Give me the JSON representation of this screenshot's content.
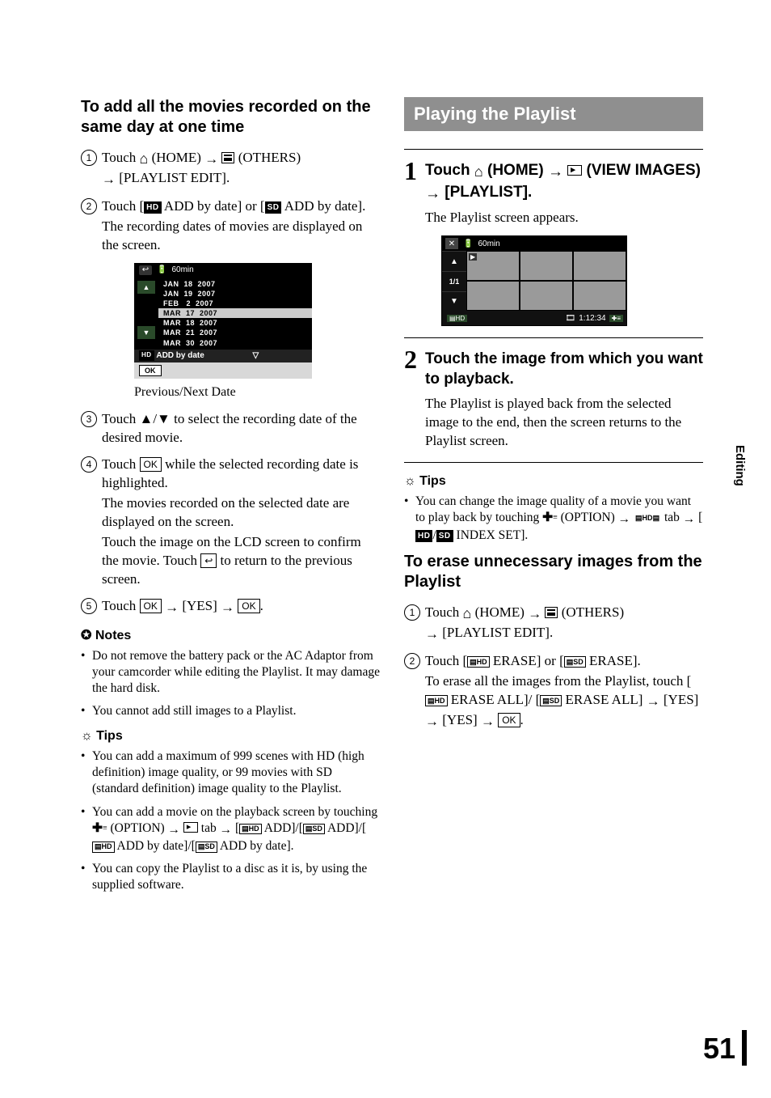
{
  "sideTab": "Editing",
  "pageNumber": "51",
  "left": {
    "heading": "To add all the movies recorded on the same day at one time",
    "step1_a": "Touch ",
    "step1_b": " (HOME) ",
    "step1_c": " (OTHERS) ",
    "step1_d": " [PLAYLIST EDIT].",
    "step2_a": "Touch [",
    "step2_b": " ADD by date] or [",
    "step2_c": " ADD by date].",
    "step2_body": "The recording dates of movies are displayed on the screen.",
    "shot1": {
      "battery": "60min",
      "dates": [
        "JAN  18  2007",
        "JAN  19  2007",
        "FEB   2  2007",
        "MAR  17  2007",
        "MAR  18  2007",
        "MAR  21  2007",
        "MAR  30  2007"
      ],
      "highlight_index": 3,
      "bar": "ADD by date",
      "ok": "OK"
    },
    "caption": "Previous/Next Date",
    "step3": "Touch ▲/▼ to select the recording date of the desired movie.",
    "step4_a": "Touch ",
    "step4_b": " while the selected recording date is highlighted.",
    "step4_body1": "The movies recorded on the selected date are displayed on the screen.",
    "step4_body2a": "Touch the image on the LCD screen to confirm the movie. Touch ",
    "step4_body2b": " to return to the previous screen.",
    "step5_a": "Touch ",
    "step5_b": " [YES] ",
    "ok": "OK",
    "notesHdr": "Notes",
    "notes": [
      "Do not remove the battery pack or the AC Adaptor from your camcorder while editing the Playlist. It may damage the hard disk.",
      "You cannot add still images to a Playlist."
    ],
    "tipsHdr": "Tips",
    "tips": [
      "You can add a maximum of 999 scenes with HD (high definition) image quality, or 99 movies with SD (standard definition) image quality to the Playlist.",
      "__TIP2__",
      "You can copy the Playlist to a disc as it is, by using the supplied software."
    ],
    "tip2_a": "You can add a movie on the playback screen by touching ",
    "tip2_b": " (OPTION) ",
    "tip2_c": " tab ",
    "tip2_d": " ADD]/[",
    "tip2_e": " ADD]/[",
    "tip2_f": " ADD by date]/[",
    "tip2_g": " ADD by date]."
  },
  "right": {
    "banner": "Playing the Playlist",
    "s1_lead_a": "Touch ",
    "s1_lead_b": " (HOME) ",
    "s1_lead_c": " (VIEW IMAGES) ",
    "s1_lead_d": " [PLAYLIST].",
    "s1_body": "The Playlist screen appears.",
    "shot2": {
      "battery": "60min",
      "page": "1/1",
      "time": "1:12:34"
    },
    "s2_lead": "Touch the image from which you want to playback.",
    "s2_body": "The Playlist is played back from the selected image to the end, then the screen returns to the Playlist screen.",
    "tipsHdr": "Tips",
    "tip_a": "You can change the image quality of a movie you want to play back by touching ",
    "tip_b": " (OPTION) ",
    "tip_c": " tab ",
    "tip_d": " [",
    "tip_e": "/",
    "tip_f": " INDEX SET].",
    "eraseHdr": "To erase unnecessary images from the Playlist",
    "e1_a": "Touch ",
    "e1_b": " (HOME) ",
    "e1_c": " (OTHERS) ",
    "e1_d": " [PLAYLIST EDIT].",
    "e2_a": "Touch [",
    "e2_b": " ERASE] or [",
    "e2_c": " ERASE].",
    "e2_body_a": "To erase all the images from the Playlist, touch [",
    "e2_body_b": " ERASE ALL]/ [",
    "e2_body_c": " ERASE ALL] ",
    "e2_body_d": " [YES] ",
    "e2_body_e": " [YES] ",
    "ok": "OK"
  }
}
